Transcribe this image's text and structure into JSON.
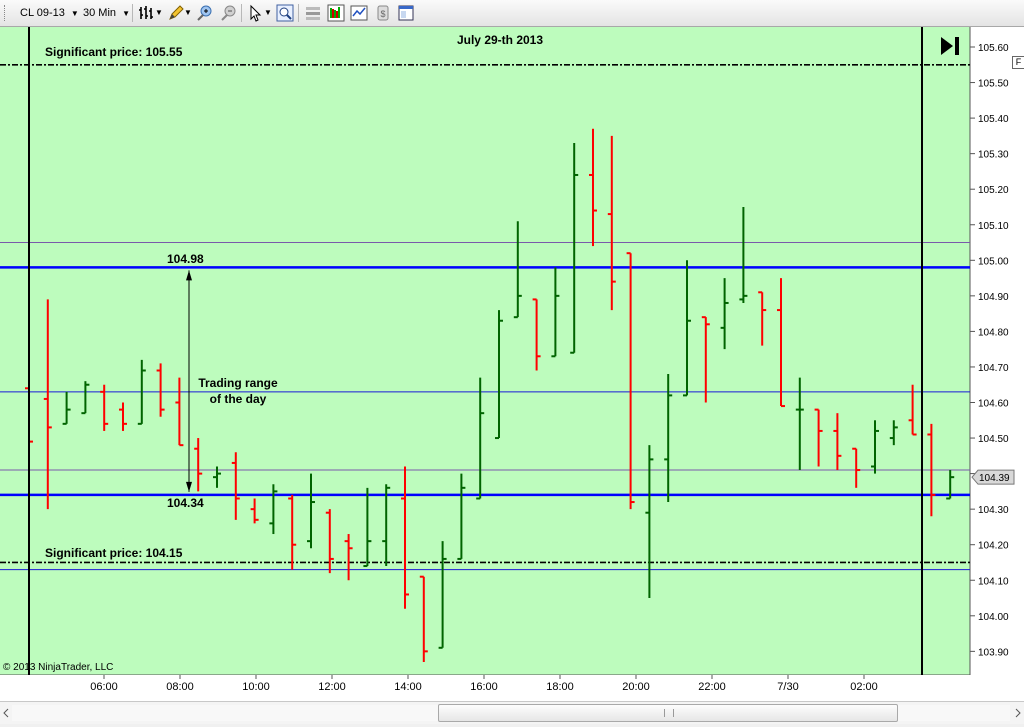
{
  "toolbar": {
    "instrument": "CL 09-13",
    "interval": "30 Min",
    "icons": [
      "bars-type-icon",
      "pencil-draw-icon",
      "zoom-in-icon",
      "zoom-out-icon",
      "pointer-icon",
      "magnifier-icon",
      "chart-properties-icon",
      "indicators-icon",
      "strategies-icon",
      "data-box-icon",
      "window-icon"
    ]
  },
  "chart_data": {
    "type": "ohlc",
    "title": "July 29-th 2013",
    "copyright": "© 2013 NinjaTrader, LLC",
    "background": "#bdfcbd",
    "up_color": "#006400",
    "down_color": "#ff0000",
    "ylim": [
      103.85,
      105.65
    ],
    "yticks": [
      "105.60",
      "105.50",
      "105.40",
      "105.30",
      "105.20",
      "105.10",
      "105.00",
      "104.90",
      "104.80",
      "104.70",
      "104.60",
      "104.50",
      "104.40",
      "104.30",
      "104.20",
      "104.10",
      "104.00",
      "103.90"
    ],
    "xticks": [
      "06:00",
      "08:00",
      "10:00",
      "12:00",
      "14:00",
      "16:00",
      "18:00",
      "20:00",
      "22:00",
      "7/30",
      "02:00"
    ],
    "last_price": "104.39",
    "end_button_icon": "skip-to-end-icon",
    "annotations": {
      "significant_high": "Significant price: 105.55",
      "significant_low": "Significant price: 104.15",
      "range_high": "104.98",
      "range_low": "104.34",
      "range_label_1": "Trading range",
      "range_label_2": "of the day"
    },
    "levels": {
      "significant_high": 105.55,
      "significant_low": 104.15,
      "range_high": 104.98,
      "range_low": 104.34,
      "thin_blue": [
        104.63,
        104.13
      ],
      "thin_purple": [
        105.05,
        104.41
      ]
    },
    "bars": [
      {
        "o": 104.64,
        "h": 104.64,
        "l": 104.49,
        "c": 104.49
      },
      {
        "o": 104.61,
        "h": 104.89,
        "l": 104.3,
        "c": 104.53
      },
      {
        "o": 104.54,
        "h": 104.63,
        "l": 104.54,
        "c": 104.58
      },
      {
        "o": 104.57,
        "h": 104.66,
        "l": 104.57,
        "c": 104.65
      },
      {
        "o": 104.63,
        "h": 104.65,
        "l": 104.52,
        "c": 104.54
      },
      {
        "o": 104.58,
        "h": 104.6,
        "l": 104.52,
        "c": 104.54
      },
      {
        "o": 104.54,
        "h": 104.72,
        "l": 104.54,
        "c": 104.69
      },
      {
        "o": 104.69,
        "h": 104.71,
        "l": 104.56,
        "c": 104.58
      },
      {
        "o": 104.6,
        "h": 104.67,
        "l": 104.48,
        "c": 104.48
      },
      {
        "o": 104.47,
        "h": 104.5,
        "l": 104.35,
        "c": 104.4
      },
      {
        "o": 104.39,
        "h": 104.42,
        "l": 104.36,
        "c": 104.4
      },
      {
        "o": 104.43,
        "h": 104.46,
        "l": 104.27,
        "c": 104.33
      },
      {
        "o": 104.3,
        "h": 104.33,
        "l": 104.26,
        "c": 104.27
      },
      {
        "o": 104.26,
        "h": 104.37,
        "l": 104.23,
        "c": 104.35
      },
      {
        "o": 104.33,
        "h": 104.34,
        "l": 104.13,
        "c": 104.2
      },
      {
        "o": 104.21,
        "h": 104.4,
        "l": 104.19,
        "c": 104.32
      },
      {
        "o": 104.29,
        "h": 104.3,
        "l": 104.12,
        "c": 104.16
      },
      {
        "o": 104.21,
        "h": 104.23,
        "l": 104.1,
        "c": 104.19
      },
      {
        "o": 104.14,
        "h": 104.36,
        "l": 104.14,
        "c": 104.21
      },
      {
        "o": 104.21,
        "h": 104.37,
        "l": 104.14,
        "c": 104.36
      },
      {
        "o": 104.33,
        "h": 104.42,
        "l": 104.02,
        "c": 104.06
      },
      {
        "o": 104.11,
        "h": 104.11,
        "l": 103.87,
        "c": 103.9
      },
      {
        "o": 103.91,
        "h": 104.21,
        "l": 103.91,
        "c": 104.16
      },
      {
        "o": 104.16,
        "h": 104.4,
        "l": 104.16,
        "c": 104.36
      },
      {
        "o": 104.33,
        "h": 104.67,
        "l": 104.33,
        "c": 104.57
      },
      {
        "o": 104.5,
        "h": 104.86,
        "l": 104.5,
        "c": 104.83
      },
      {
        "o": 104.84,
        "h": 105.11,
        "l": 104.84,
        "c": 104.9
      },
      {
        "o": 104.89,
        "h": 104.89,
        "l": 104.69,
        "c": 104.73
      },
      {
        "o": 104.73,
        "h": 104.98,
        "l": 104.73,
        "c": 104.9
      },
      {
        "o": 104.74,
        "h": 105.33,
        "l": 104.74,
        "c": 105.24
      },
      {
        "o": 105.24,
        "h": 105.37,
        "l": 105.04,
        "c": 105.14
      },
      {
        "o": 105.13,
        "h": 105.35,
        "l": 104.86,
        "c": 104.94
      },
      {
        "o": 105.02,
        "h": 105.02,
        "l": 104.3,
        "c": 104.32
      },
      {
        "o": 104.29,
        "h": 104.48,
        "l": 104.05,
        "c": 104.44
      },
      {
        "o": 104.44,
        "h": 104.68,
        "l": 104.32,
        "c": 104.62
      },
      {
        "o": 104.62,
        "h": 105.0,
        "l": 104.62,
        "c": 104.83
      },
      {
        "o": 104.84,
        "h": 104.84,
        "l": 104.6,
        "c": 104.82
      },
      {
        "o": 104.81,
        "h": 104.95,
        "l": 104.75,
        "c": 104.88
      },
      {
        "o": 104.89,
        "h": 105.15,
        "l": 104.88,
        "c": 104.9
      },
      {
        "o": 104.91,
        "h": 104.91,
        "l": 104.76,
        "c": 104.86
      },
      {
        "o": 104.86,
        "h": 104.95,
        "l": 104.59,
        "c": 104.59
      },
      {
        "o": 104.58,
        "h": 104.67,
        "l": 104.41,
        "c": 104.58
      },
      {
        "o": 104.58,
        "h": 104.58,
        "l": 104.42,
        "c": 104.52
      },
      {
        "o": 104.52,
        "h": 104.57,
        "l": 104.41,
        "c": 104.45
      },
      {
        "o": 104.47,
        "h": 104.47,
        "l": 104.36,
        "c": 104.41
      },
      {
        "o": 104.42,
        "h": 104.55,
        "l": 104.4,
        "c": 104.52
      },
      {
        "o": 104.5,
        "h": 104.55,
        "l": 104.48,
        "c": 104.53
      },
      {
        "o": 104.55,
        "h": 104.65,
        "l": 104.51,
        "c": 104.51
      },
      {
        "o": 104.51,
        "h": 104.54,
        "l": 104.28,
        "c": 104.34
      },
      {
        "o": 104.33,
        "h": 104.41,
        "l": 104.33,
        "c": 104.39
      }
    ]
  }
}
